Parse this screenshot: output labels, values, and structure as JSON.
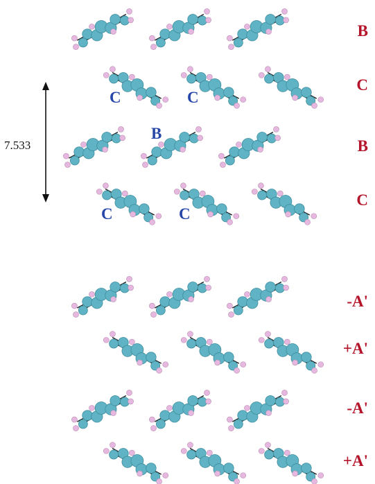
{
  "dimension": {
    "value": "7.533"
  },
  "rows": [
    {
      "label": "B",
      "orientation": "up"
    },
    {
      "label": "C",
      "orientation": "down"
    },
    {
      "label": "B",
      "orientation": "up"
    },
    {
      "label": "C",
      "orientation": "down"
    },
    {
      "label": "-A'",
      "orientation": "up"
    },
    {
      "label": "+A'",
      "orientation": "down"
    },
    {
      "label": "-A'",
      "orientation": "up"
    },
    {
      "label": "+A'",
      "orientation": "down"
    }
  ],
  "molecule_labels": [
    "C",
    "C",
    "B",
    "C",
    "C"
  ],
  "colors": {
    "carbon": "#5fb3c4",
    "hydrogen": "#e6b7df",
    "row_label": "#b5152b",
    "molecule_label": "#2747a8",
    "bond": "#1a1a1a"
  }
}
